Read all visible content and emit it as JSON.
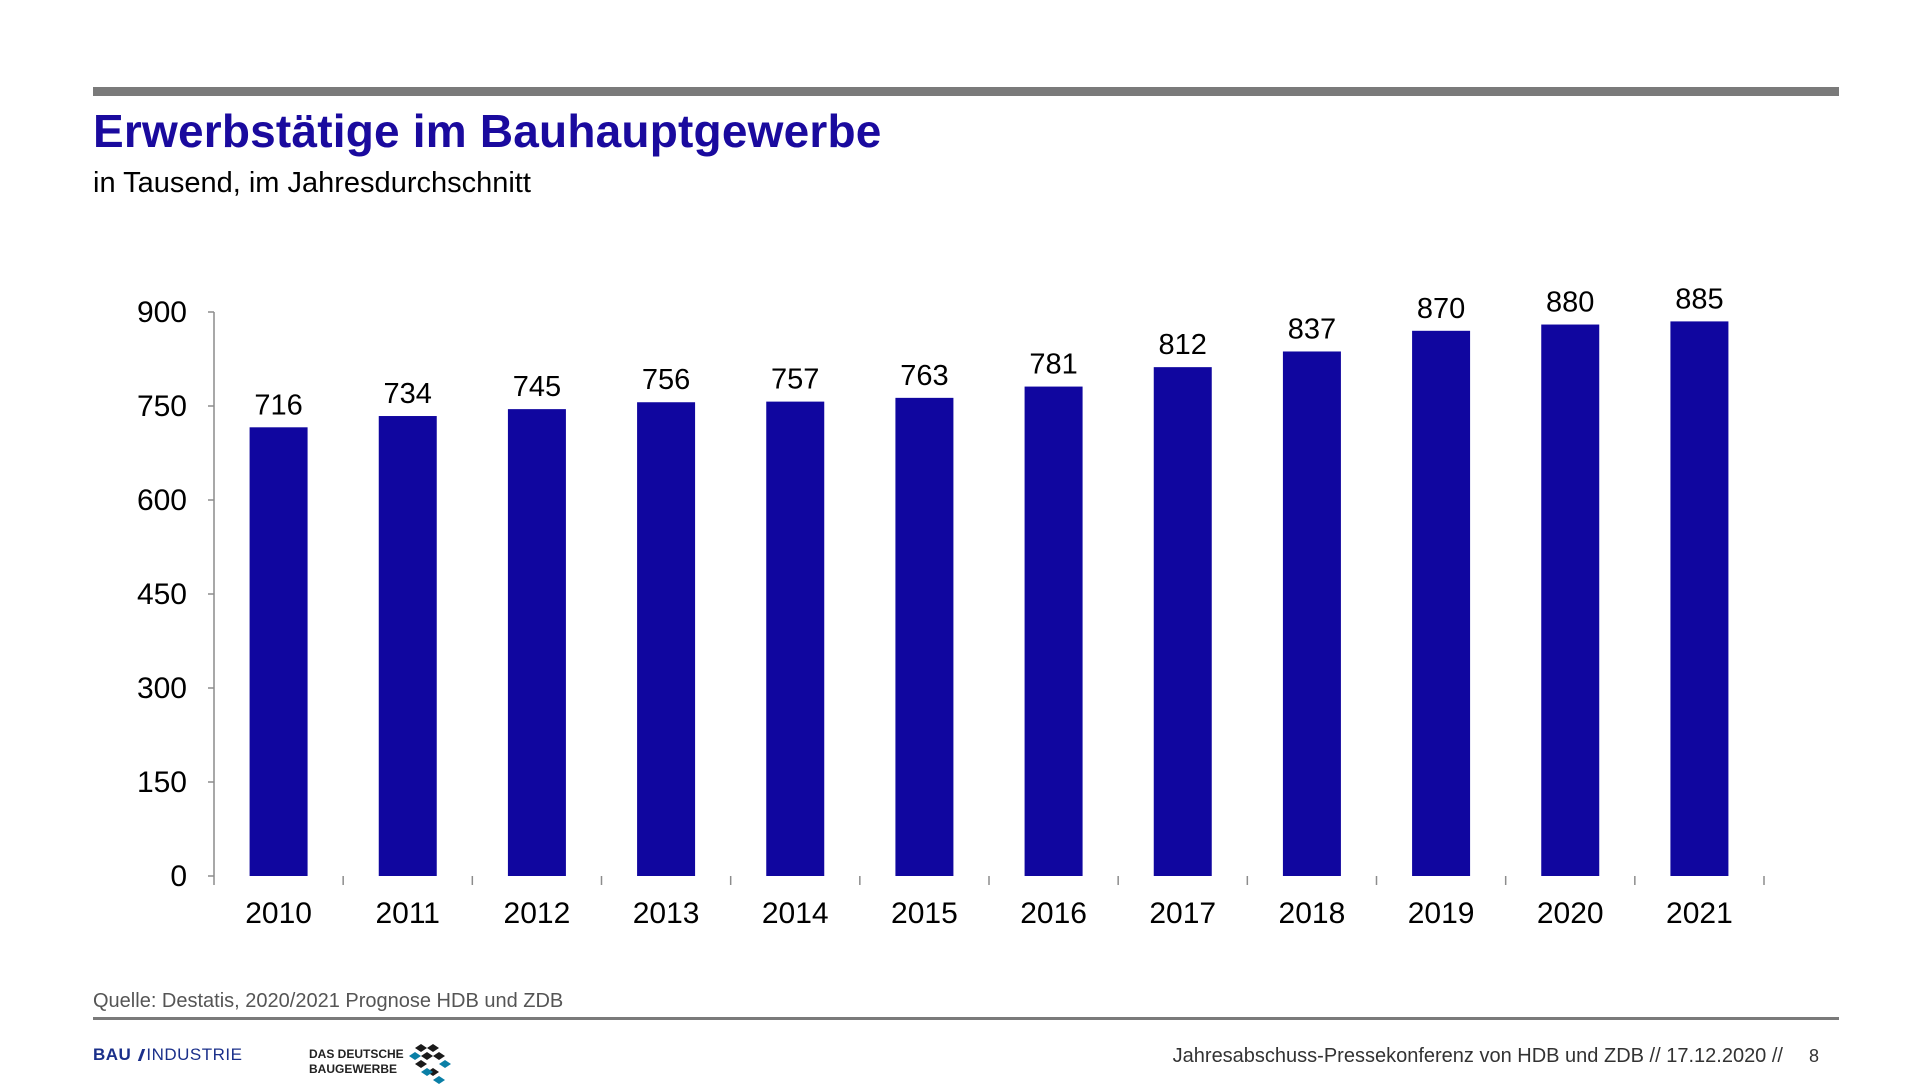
{
  "slide": {
    "title": "Erwerbstätige im Bauhauptgewerbe",
    "subtitle": "in Tausend, im Jahresdurchschnitt",
    "source": "Quelle: Destatis, 2020/2021 Prognose HDB und ZDB",
    "footer_text": "Jahresabschuss-Pressekonferenz von HDB und ZDB  //  17.12.2020  //",
    "page_number": "8",
    "logos": {
      "bau_bold": "BAU",
      "bau_rest": "INDUSTRIE",
      "zdb_line1": "DAS DEUTSCHE",
      "zdb_line2": "BAUGEWERBE"
    }
  },
  "colors": {
    "title": "#1a0a9e",
    "bar": "#10069f",
    "rule": "#7a7a7a"
  },
  "chart_data": {
    "type": "bar",
    "categories": [
      "2010",
      "2011",
      "2012",
      "2013",
      "2014",
      "2015",
      "2016",
      "2017",
      "2018",
      "2019",
      "2020",
      "2021"
    ],
    "values": [
      716,
      734,
      745,
      756,
      757,
      763,
      781,
      812,
      837,
      870,
      880,
      885
    ],
    "data_labels": [
      "716",
      "734",
      "745",
      "756",
      "757",
      "763",
      "781",
      "812",
      "837",
      "870",
      "880",
      "885"
    ],
    "yticks": [
      0,
      150,
      300,
      450,
      600,
      750,
      900
    ],
    "ylim": [
      0,
      900
    ],
    "grid": false,
    "legend": "none"
  }
}
